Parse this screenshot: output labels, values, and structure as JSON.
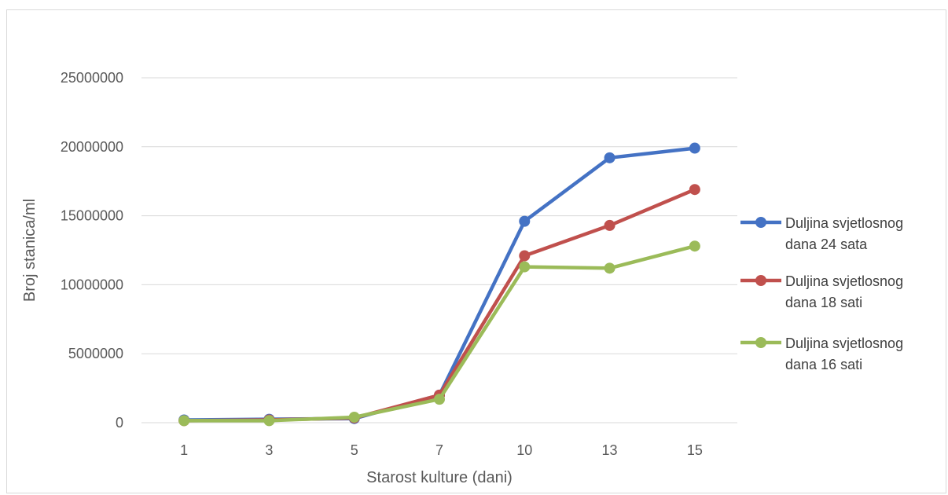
{
  "chart_data": {
    "type": "line",
    "title": "",
    "xlabel": "Starost kulture (dani)",
    "ylabel": "Broj stanica/ml",
    "categories": [
      "1",
      "3",
      "5",
      "7",
      "10",
      "13",
      "15"
    ],
    "ylim": [
      0,
      25000000
    ],
    "yticks": [
      0,
      5000000,
      10000000,
      15000000,
      20000000,
      25000000
    ],
    "ytick_labels": [
      "0",
      "5000000",
      "10000000",
      "15000000",
      "20000000",
      "25000000"
    ],
    "grid": true,
    "legend_position": "right",
    "series": [
      {
        "name": "Duljina svjetlosnog dana 24 sata",
        "name_lines": [
          "Duljina svjetlosnog",
          "dana 24 sata"
        ],
        "color": "#4472C4",
        "values": [
          200000,
          250000,
          300000,
          2000000,
          14600000,
          19200000,
          19900000
        ]
      },
      {
        "name": "Duljina svjetlosnog dana 18 sati",
        "name_lines": [
          "Duljina svjetlosnog",
          "dana 18 sati"
        ],
        "color": "#C0504D",
        "values": [
          150000,
          200000,
          350000,
          2000000,
          12100000,
          14300000,
          16900000
        ]
      },
      {
        "name": "Duljina svjetlosnog dana 16 sati",
        "name_lines": [
          "Duljina svjetlosnog",
          "dana 16 sati"
        ],
        "color": "#9BBB59",
        "values": [
          150000,
          150000,
          400000,
          1700000,
          11300000,
          11200000,
          12800000
        ]
      }
    ]
  }
}
